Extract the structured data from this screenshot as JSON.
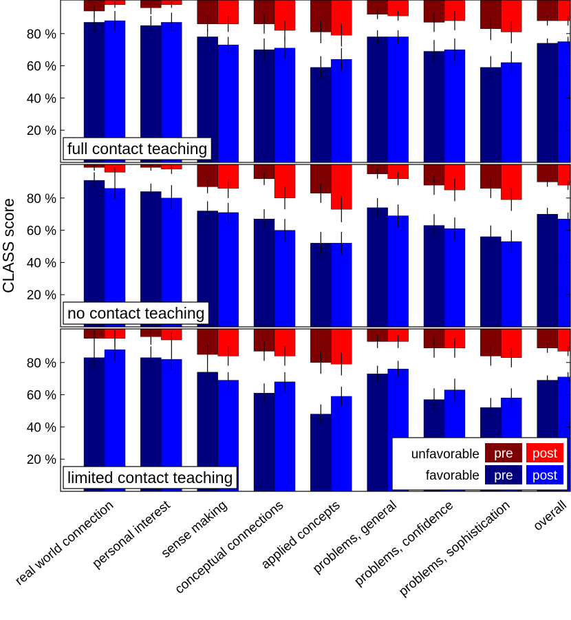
{
  "chart_data": {
    "type": "bar",
    "ylabel": "CLASS score",
    "ylim": [
      0,
      100
    ],
    "yticks": [
      20,
      40,
      60,
      80
    ],
    "ytick_suffix": " %",
    "categories": [
      "real world connection",
      "personal interest",
      "sense making",
      "conceptual connections",
      "applied concepts",
      "problems, general",
      "problems, confidence",
      "problems, sophistication",
      "overall"
    ],
    "colors": {
      "favorable_pre": "#00007f",
      "favorable_post": "#0000ff",
      "unfavorable_pre": "#7f0000",
      "unfavorable_post": "#ff0000"
    },
    "legend": {
      "unfavorable_label": "unfavorable",
      "favorable_label": "favorable",
      "pre_label": "pre",
      "post_label": "post"
    },
    "panels": [
      {
        "title": "full contact teaching",
        "favorable_pre": [
          87,
          85,
          78,
          70,
          59,
          78,
          69,
          59,
          74
        ],
        "favorable_post": [
          88,
          87,
          73,
          71,
          64,
          78,
          70,
          62,
          75
        ],
        "unfavorable_pre": [
          94,
          96,
          86,
          86,
          81,
          92,
          87,
          83,
          88
        ],
        "unfavorable_post": [
          98,
          98,
          86,
          82,
          79,
          91,
          88,
          81,
          88
        ],
        "fav_pre_err": [
          6,
          6,
          5,
          7,
          7,
          4,
          7,
          7,
          3
        ],
        "fav_post_err": [
          6,
          6,
          5,
          7,
          7,
          4,
          7,
          7,
          3
        ],
        "unfav_pre_err": [
          4,
          4,
          5,
          6,
          7,
          3,
          6,
          7,
          3
        ],
        "unfav_post_err": [
          2,
          2,
          5,
          6,
          7,
          3,
          6,
          7,
          3
        ]
      },
      {
        "title": "no contact teaching",
        "favorable_pre": [
          91,
          84,
          72,
          67,
          52,
          74,
          63,
          56,
          70
        ],
        "favorable_post": [
          86,
          80,
          71,
          60,
          52,
          69,
          61,
          53,
          67
        ],
        "unfavorable_pre": [
          99,
          99,
          87,
          92,
          83,
          95,
          88,
          86,
          90
        ],
        "unfavorable_post": [
          96,
          98,
          86,
          80,
          73,
          92,
          85,
          79,
          88
        ],
        "fav_pre_err": [
          5,
          5,
          6,
          6,
          7,
          6,
          7,
          7,
          4
        ],
        "fav_post_err": [
          7,
          8,
          6,
          7,
          7,
          7,
          7,
          7,
          4
        ],
        "unfav_pre_err": [
          2,
          2,
          4,
          4,
          6,
          3,
          6,
          6,
          3
        ],
        "unfav_post_err": [
          3,
          3,
          6,
          7,
          8,
          4,
          7,
          7,
          3
        ]
      },
      {
        "title": "limited contact teaching",
        "favorable_pre": [
          83,
          83,
          74,
          61,
          48,
          73,
          57,
          52,
          69
        ],
        "favorable_post": [
          88,
          82,
          69,
          68,
          59,
          76,
          63,
          58,
          71
        ],
        "unfavorable_pre": [
          95,
          96,
          85,
          87,
          80,
          93,
          89,
          84,
          89
        ],
        "unfavorable_post": [
          95,
          94,
          84,
          84,
          79,
          93,
          89,
          83,
          87
        ],
        "fav_pre_err": [
          7,
          7,
          5,
          6,
          6,
          5,
          7,
          6,
          3
        ],
        "fav_post_err": [
          7,
          7,
          5,
          6,
          6,
          5,
          7,
          6,
          3
        ],
        "unfav_pre_err": [
          5,
          5,
          6,
          6,
          7,
          4,
          6,
          6,
          3
        ],
        "unfav_post_err": [
          5,
          5,
          6,
          6,
          7,
          4,
          6,
          6,
          3
        ]
      }
    ]
  }
}
